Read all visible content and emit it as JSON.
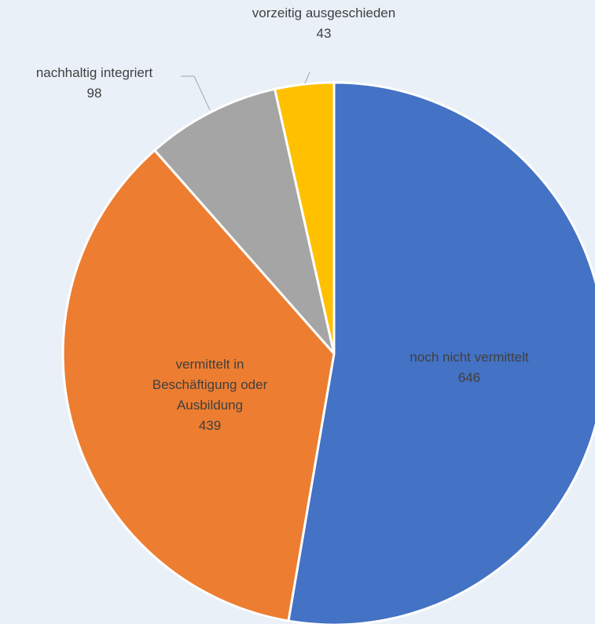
{
  "chart_data": {
    "type": "pie",
    "categories": [
      "noch nicht vermittelt",
      "vermittelt in Beschäftigung oder Ausbildung",
      "nachhaltig integriert",
      "vorzeitig ausgeschieden"
    ],
    "values": [
      646,
      439,
      98,
      43
    ],
    "colors": [
      "#4472c4",
      "#ed7d31",
      "#a5a5a5",
      "#ffc000"
    ]
  }
}
